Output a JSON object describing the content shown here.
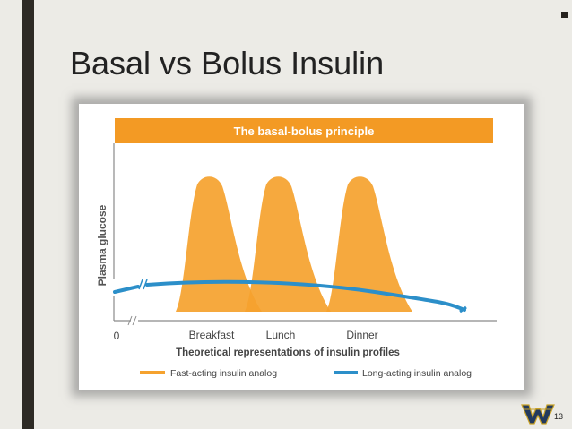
{
  "slide": {
    "title": "Basal vs Bolus Insulin",
    "slide_number": "13",
    "logo_icon": "wv-logo-icon"
  },
  "colors": {
    "background": "#ecebe6",
    "accent_bar": "#2d2a25",
    "orange": "#f5a22e",
    "orange_banner": "#f39a24",
    "blue": "#2c8fc9"
  },
  "chart_data": {
    "type": "area",
    "title": "The basal-bolus principle",
    "ylabel": "Plasma glucose",
    "xlabel": "Theoretical representations of insulin profiles",
    "origin_label": "0",
    "categories": [
      "Breakfast",
      "Lunch",
      "Dinner"
    ],
    "series": [
      {
        "name": "Fast-acting insulin analog",
        "color": "#f5a22e",
        "style": "peaks at each meal"
      },
      {
        "name": "Long-acting insulin analog",
        "color": "#2c8fc9",
        "style": "flat basal line"
      }
    ],
    "legend_position": "bottom"
  }
}
